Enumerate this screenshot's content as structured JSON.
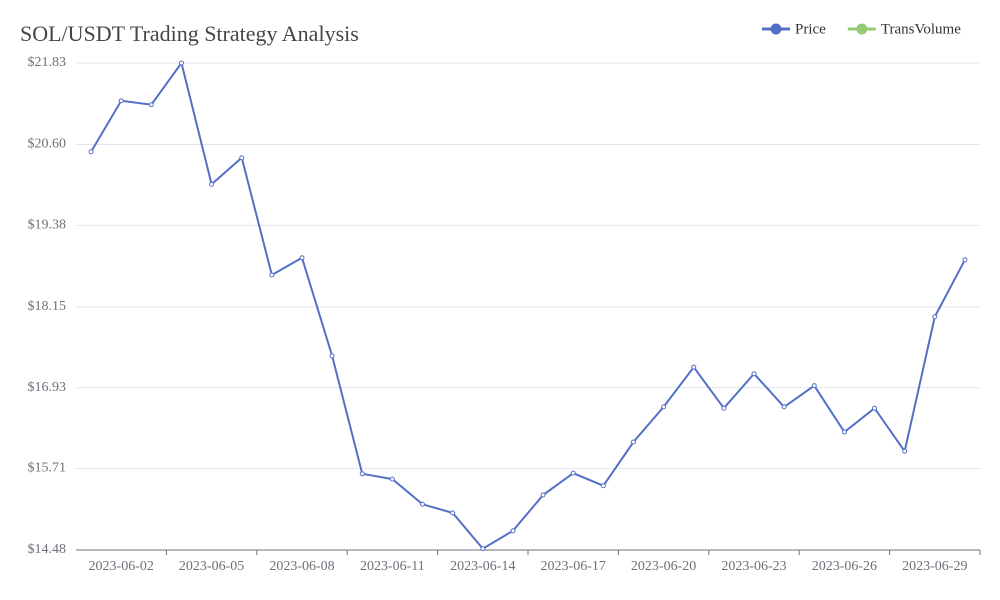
{
  "chart_data": {
    "type": "line",
    "title": "SOL/USDT Trading Strategy Analysis",
    "categories": [
      null,
      "2023-06-02",
      null,
      null,
      "2023-06-05",
      null,
      null,
      "2023-06-08",
      null,
      null,
      "2023-06-11",
      null,
      null,
      "2023-06-14",
      null,
      null,
      "2023-06-17",
      null,
      null,
      "2023-06-20",
      null,
      null,
      "2023-06-23",
      null,
      null,
      "2023-06-26",
      null,
      null,
      "2023-06-29",
      null
    ],
    "series": [
      {
        "name": "Price",
        "color": "#5470c6",
        "values": [
          20.49,
          21.26,
          21.2,
          21.83,
          20.0,
          20.4,
          18.63,
          18.89,
          17.41,
          15.63,
          15.55,
          15.17,
          15.04,
          14.5,
          14.77,
          15.31,
          15.64,
          15.45,
          16.11,
          16.64,
          17.24,
          16.62,
          17.14,
          16.64,
          16.96,
          16.26,
          16.62,
          15.97,
          18.0,
          18.86
        ]
      },
      {
        "name": "TransVolume",
        "color": "#91cc75",
        "values": [
          null,
          null,
          null,
          null,
          null,
          null,
          null,
          null,
          null,
          null,
          null,
          null,
          null,
          null,
          null,
          null,
          null,
          null,
          null,
          null,
          null,
          null,
          null,
          null,
          null,
          null,
          null,
          null,
          null,
          null
        ]
      }
    ],
    "ylim": [
      14.48,
      21.83
    ],
    "yticks": [
      {
        "value": 14.48,
        "label": "$14.48"
      },
      {
        "value": 15.71,
        "label": "$15.71"
      },
      {
        "value": 16.93,
        "label": "$16.93"
      },
      {
        "value": 18.15,
        "label": "$18.15"
      },
      {
        "value": 19.38,
        "label": "$19.38"
      },
      {
        "value": 20.6,
        "label": "$20.60"
      },
      {
        "value": 21.83,
        "label": "$21.83"
      }
    ],
    "grid": true,
    "legend": "top-right"
  }
}
